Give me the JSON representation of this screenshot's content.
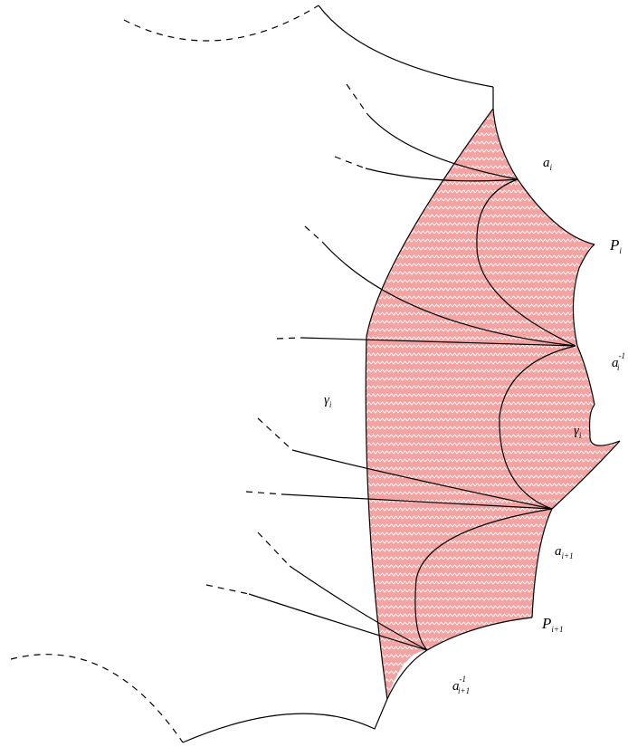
{
  "colors": {
    "region_fill": "#f4a3a3",
    "hatch": "#ffffff",
    "line": "#000000"
  },
  "labels": {
    "a_i": {
      "base": "a",
      "sub": "i"
    },
    "P_i": {
      "base": "P",
      "sub": "i"
    },
    "a_i_inv": {
      "base": "a",
      "sub": "i",
      "sup": "-1"
    },
    "gamma_i_right": {
      "base": "γ",
      "sub": "i"
    },
    "gamma_i_left": {
      "base": "γ",
      "sub": "i"
    },
    "a_i1": {
      "base": "a",
      "sub": "i+1"
    },
    "P_i1": {
      "base": "P",
      "sub": "i+1"
    },
    "a_i1_inv": {
      "base": "a",
      "sub": "i+1",
      "sup": "-1"
    }
  }
}
